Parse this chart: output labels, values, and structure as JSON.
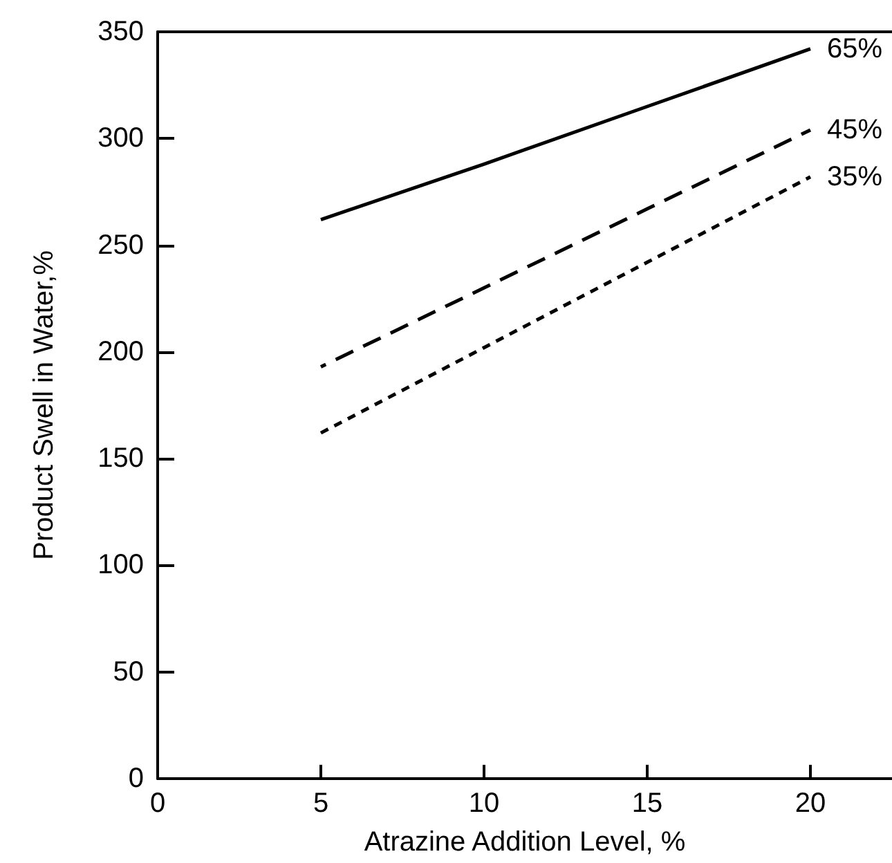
{
  "chart_data": {
    "type": "line",
    "xlabel": "Atrazine Addition Level, %",
    "ylabel": "Product Swell in Water,%",
    "x": [
      5,
      10,
      15,
      20
    ],
    "series": [
      {
        "name": "65%",
        "color": "#000000",
        "line_style": "solid",
        "values": [
          262,
          288,
          315,
          342
        ]
      },
      {
        "name": "45%",
        "color": "#000000",
        "line_style": "dashed",
        "values": [
          193,
          230,
          267,
          304
        ]
      },
      {
        "name": "35%",
        "color": "#000000",
        "line_style": "dotted",
        "values": [
          162,
          202,
          242,
          282
        ]
      }
    ],
    "xlim": [
      0,
      22.5
    ],
    "xticks": [
      0,
      5,
      10,
      15,
      20
    ],
    "ylim": [
      0,
      350
    ],
    "yticks": [
      0,
      50,
      100,
      150,
      200,
      250,
      300,
      350
    ],
    "grid": false,
    "legend": false,
    "marker": "none"
  }
}
